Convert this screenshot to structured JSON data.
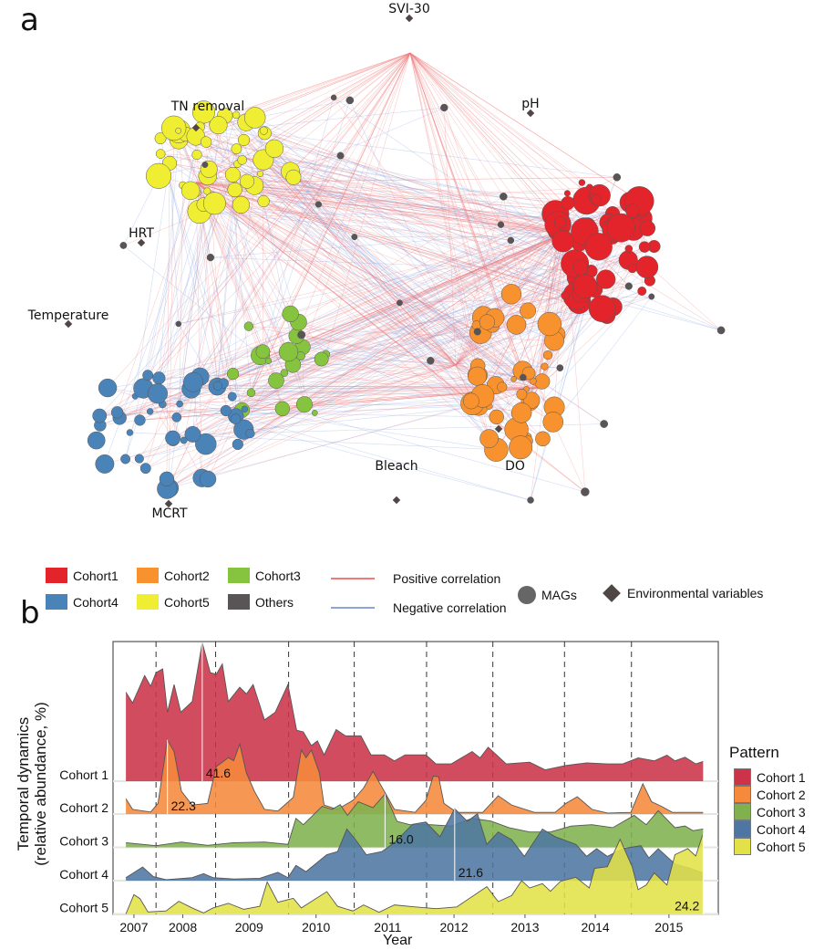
{
  "panel_a": {
    "label": "a",
    "env_variables": [
      "SVI-30",
      "pH",
      "TN removal",
      "HRT",
      "Temperature",
      "MCRT",
      "Bleach",
      "DO"
    ],
    "legend": {
      "groups": [
        {
          "name": "Cohort1",
          "color": "#e3242b"
        },
        {
          "name": "Cohort2",
          "color": "#f7922e"
        },
        {
          "name": "Cohort3",
          "color": "#86c440"
        },
        {
          "name": "Cohort4",
          "color": "#4a83b8"
        },
        {
          "name": "Cohort5",
          "color": "#f0ee33"
        },
        {
          "name": "Others",
          "color": "#595556"
        }
      ],
      "positive": {
        "label": "Positive correlation",
        "color": "#f07a7a"
      },
      "negative": {
        "label": "Negative correlation",
        "color": "#8ea4d8"
      },
      "mags": "MAGs",
      "env": "Environmental variables"
    }
  },
  "panel_b": {
    "label": "b"
  },
  "chart_data": {
    "type": "area",
    "xlabel": "Year",
    "ylabel": "Temporal dynamics\n(relative abundance, %)",
    "ylabel_line1": "Temporal dynamics",
    "ylabel_line2": "(relative abundance, %)",
    "x_ticks": [
      "2007",
      "2008",
      "2009",
      "2010",
      "2011",
      "2012",
      "2013",
      "2014",
      "2015"
    ],
    "x_tick_positions": [
      2007.0,
      2007.73,
      2008.72,
      2009.72,
      2010.79,
      2011.78,
      2012.84,
      2013.89,
      2014.99
    ],
    "dashed_lines": [
      2007.33,
      2008.22,
      2009.31,
      2010.29,
      2011.37,
      2012.36,
      2013.43,
      2014.43
    ],
    "legend": {
      "title": "Pattern",
      "placement": "right"
    },
    "grid": false,
    "series": [
      {
        "name": "Cohort 1",
        "color": "#cc3349",
        "peak_label": "41.6",
        "peak_x": 2008.02,
        "peak_y": 41.6,
        "x": [
          2006.88,
          2006.98,
          2007.16,
          2007.25,
          2007.33,
          2007.43,
          2007.5,
          2007.6,
          2007.7,
          2007.87,
          2008.02,
          2008.14,
          2008.23,
          2008.32,
          2008.41,
          2008.58,
          2008.68,
          2008.78,
          2008.95,
          2009.11,
          2009.3,
          2009.43,
          2009.53,
          2009.65,
          2009.74,
          2009.84,
          2010.02,
          2010.16,
          2010.39,
          2010.54,
          2010.74,
          2010.89,
          2011.05,
          2011.36,
          2011.51,
          2011.74,
          2012.05,
          2012.17,
          2012.29,
          2012.56,
          2012.91,
          2013.14,
          2013.45,
          2013.76,
          2014.07,
          2014.3,
          2014.53,
          2014.77,
          2014.96,
          2015.08,
          2015.23,
          2015.39,
          2015.5
        ],
        "y": [
          26.7,
          23.5,
          31.7,
          28.5,
          32.6,
          33.7,
          20.7,
          29,
          20.7,
          23.9,
          41.6,
          32.6,
          32.1,
          35.2,
          23.9,
          28.2,
          26.2,
          29,
          18.4,
          20.7,
          29,
          15.3,
          14.8,
          10.7,
          12.1,
          7.9,
          15.5,
          13.6,
          13.6,
          7.9,
          7.9,
          6.1,
          7.9,
          7.9,
          5.2,
          5.2,
          8.9,
          7,
          10.2,
          5.2,
          5.7,
          3.4,
          4.7,
          5.5,
          5.2,
          5.2,
          7,
          6.1,
          7.8,
          6.1,
          7.2,
          5.2,
          5.9
        ]
      },
      {
        "name": "Cohort 2",
        "color": "#f58a3c",
        "peak_label": "22.3",
        "peak_x": 2007.5,
        "peak_y": 22.3,
        "x": [
          2006.88,
          2006.98,
          2007.25,
          2007.36,
          2007.5,
          2007.6,
          2007.71,
          2007.87,
          2008.1,
          2008.23,
          2008.41,
          2008.49,
          2008.58,
          2008.68,
          2008.8,
          2008.95,
          2009.15,
          2009.38,
          2009.5,
          2009.57,
          2009.65,
          2009.77,
          2009.84,
          2010.04,
          2010.27,
          2010.43,
          2010.57,
          2010.74,
          2010.89,
          2011.2,
          2011.36,
          2011.47,
          2011.55,
          2011.63,
          2011.82,
          2012.21,
          2012.44,
          2012.64,
          2012.98,
          2013.29,
          2013.45,
          2013.62,
          2013.84,
          2014.07,
          2014.42,
          2014.6,
          2014.73,
          2014.88,
          2015.04,
          2015.5
        ],
        "y": [
          4.6,
          1.4,
          0.6,
          3.2,
          22.3,
          18.7,
          6.8,
          2.7,
          3.2,
          14.2,
          16.9,
          16,
          21,
          12.3,
          6.8,
          1.4,
          0.9,
          5,
          19.2,
          16.9,
          19.2,
          12.3,
          2.7,
          1.4,
          4.1,
          7.8,
          12.8,
          6.8,
          1.4,
          0.5,
          4.1,
          11.4,
          11.2,
          3.2,
          0.5,
          0.5,
          5.5,
          2.7,
          0.5,
          0.5,
          3.2,
          5.2,
          1.4,
          0.3,
          0.5,
          9.1,
          3.7,
          2.3,
          0.5,
          0.5
        ]
      },
      {
        "name": "Cohort 3",
        "color": "#7fb24e",
        "peak_label": "16.0",
        "peak_x": 2010.75,
        "peak_y": 16.0,
        "x": [
          2006.88,
          2007.33,
          2007.71,
          2008.1,
          2008.49,
          2008.95,
          2009.3,
          2009.42,
          2009.53,
          2009.81,
          2009.96,
          2010.08,
          2010.19,
          2010.35,
          2010.57,
          2010.75,
          2010.93,
          2011.12,
          2011.43,
          2011.74,
          2012.05,
          2012.33,
          2012.6,
          2012.91,
          2013.22,
          2013.53,
          2013.84,
          2014.15,
          2014.47,
          2014.65,
          2014.83,
          2015.08,
          2015.23,
          2015.35,
          2015.5
        ],
        "y": [
          1.4,
          0.5,
          1.6,
          0.6,
          1.4,
          1.6,
          0.9,
          8.7,
          6.8,
          12.3,
          11.4,
          12.8,
          9.6,
          13.7,
          11.9,
          16.0,
          7.8,
          6.8,
          6.8,
          6.4,
          8.7,
          7.9,
          5.9,
          4.6,
          4.6,
          6.4,
          6.8,
          5.9,
          9.6,
          6.8,
          11,
          5.9,
          6.4,
          5,
          5.5
        ]
      },
      {
        "name": "Cohort 4",
        "color": "#4f76a2",
        "peak_label": "21.6",
        "peak_x": 2011.79,
        "peak_y": 21.6,
        "x": [
          2006.88,
          2007.13,
          2007.29,
          2007.48,
          2007.87,
          2008.04,
          2008.18,
          2008.49,
          2008.88,
          2009.15,
          2009.3,
          2009.42,
          2009.57,
          2009.88,
          2010.04,
          2010.18,
          2010.31,
          2010.47,
          2010.7,
          2010.89,
          2011.16,
          2011.36,
          2011.57,
          2011.79,
          2011.98,
          2012.13,
          2012.27,
          2012.44,
          2012.64,
          2012.83,
          2013.1,
          2013.29,
          2013.6,
          2013.76,
          2013.91,
          2014.07,
          2014.3,
          2014.57,
          2014.69,
          2014.83,
          2015.08,
          2015.31,
          2015.5
        ],
        "y": [
          0.9,
          4.1,
          1.2,
          0.3,
          0.9,
          2.1,
          0.9,
          0.5,
          0.7,
          2.5,
          0.9,
          4.6,
          2.7,
          7.8,
          8.7,
          15.5,
          12.3,
          7.8,
          8.7,
          11.4,
          16.9,
          17.6,
          13.2,
          21.6,
          17.8,
          20.1,
          10.9,
          14.6,
          12.3,
          7.3,
          15.5,
          13.2,
          10.9,
          7.3,
          9.6,
          7.3,
          9.6,
          10.5,
          6.8,
          9.6,
          5,
          3.7,
          2.3
        ]
      },
      {
        "name": "Cohort 5",
        "color": "#e3e148",
        "peak_label": "24.2",
        "peak_x": 2015.5,
        "peak_y": 24.2,
        "x": [
          2006.88,
          2007.0,
          2007.09,
          2007.21,
          2007.48,
          2007.67,
          2007.87,
          2008.04,
          2008.18,
          2008.41,
          2008.64,
          2008.88,
          2008.99,
          2009.15,
          2009.38,
          2009.5,
          2009.88,
          2010.04,
          2010.27,
          2010.43,
          2010.66,
          2010.89,
          2011.2,
          2011.51,
          2011.82,
          2012.27,
          2012.44,
          2012.64,
          2012.79,
          2012.91,
          2013.1,
          2013.22,
          2013.37,
          2013.6,
          2013.8,
          2013.88,
          2014.07,
          2014.26,
          2014.44,
          2014.53,
          2014.65,
          2014.77,
          2014.96,
          2015.08,
          2015.27,
          2015.39,
          2015.5
        ],
        "y": [
          0,
          5.8,
          4.6,
          0.6,
          0.9,
          3.8,
          1.8,
          0.3,
          1.8,
          3.2,
          1.4,
          2.3,
          9.6,
          3.5,
          4.7,
          1.8,
          6.7,
          2.3,
          0.9,
          2.7,
          0.5,
          2.7,
          2.1,
          1.6,
          2.1,
          8.2,
          3.7,
          5.5,
          10,
          7.8,
          9.1,
          6.8,
          9.8,
          11,
          7.8,
          13.7,
          14.2,
          22.4,
          14.2,
          7.3,
          8.7,
          12.3,
          8.7,
          17.8,
          19.6,
          17.4,
          24.2
        ]
      }
    ]
  }
}
